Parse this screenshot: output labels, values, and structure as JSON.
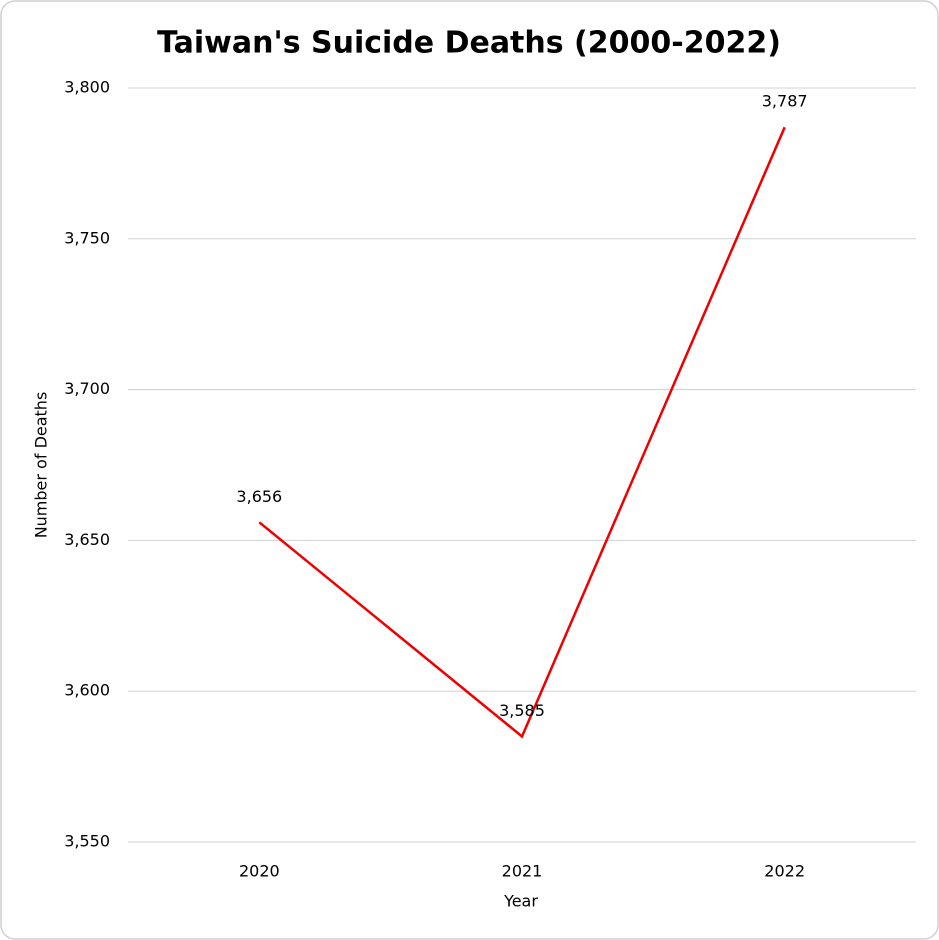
{
  "chart_data": {
    "type": "line",
    "title": "Taiwan's Suicide Deaths (2000-2022)",
    "x_label": "Year",
    "y_label": "Number of Deaths",
    "categories": [
      "2020",
      "2021",
      "2022"
    ],
    "series": [
      {
        "name": "Suicide Deaths",
        "color": "#ee0000",
        "values": [
          3656,
          3585,
          3787
        ],
        "value_labels": [
          "3,656",
          "3,585",
          "3,787"
        ]
      }
    ],
    "ylim": [
      3550,
      3800
    ],
    "yticks": [
      {
        "value": 3550,
        "label": "3,550"
      },
      {
        "value": 3600,
        "label": "3,600"
      },
      {
        "value": 3650,
        "label": "3,650"
      },
      {
        "value": 3700,
        "label": "3,700"
      },
      {
        "value": 3750,
        "label": "3,750"
      },
      {
        "value": 3800,
        "label": "3,800"
      }
    ],
    "grid": true
  }
}
